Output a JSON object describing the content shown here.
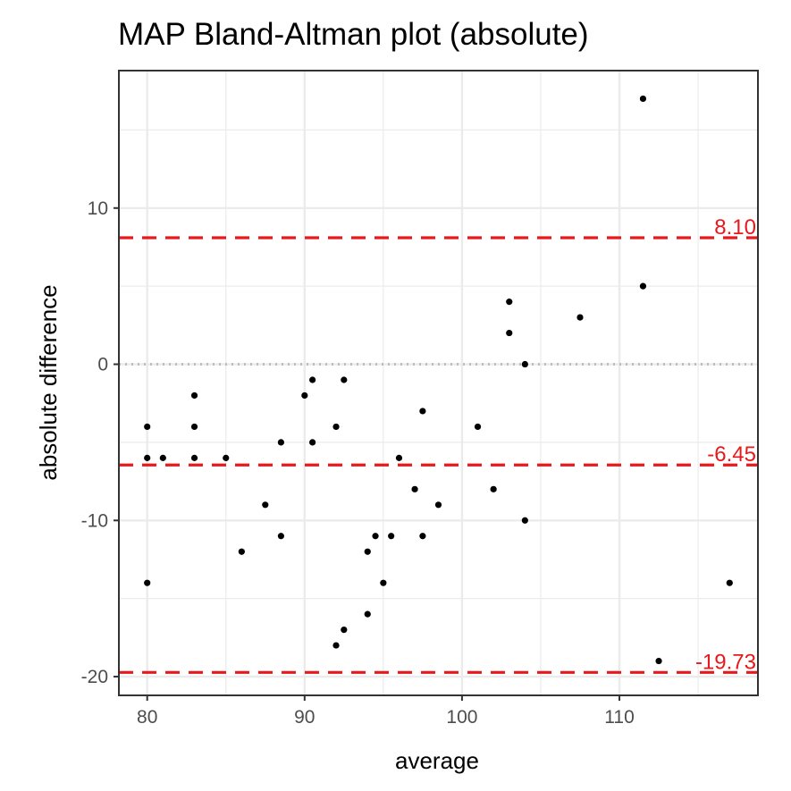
{
  "chart_data": {
    "type": "scatter",
    "title": "MAP   Bland-Altman plot (absolute)",
    "xlabel": "average",
    "ylabel": "absolute difference",
    "xlim": [
      78.2,
      118.8
    ],
    "ylim": [
      -21.2,
      18.8
    ],
    "x_ticks": [
      80,
      90,
      100,
      110
    ],
    "y_ticks": [
      -20,
      -10,
      0,
      10
    ],
    "x_tick_labels": [
      "80",
      "90",
      "100",
      "110"
    ],
    "y_tick_labels": [
      "-20",
      "-10",
      "0",
      "10"
    ],
    "grid": true,
    "reference_lines": [
      {
        "value": 8.1,
        "label": "8.10",
        "style": "dashed",
        "color": "#e8191c"
      },
      {
        "value": -6.45,
        "label": "-6.45",
        "style": "dashed",
        "color": "#e8191c"
      },
      {
        "value": -19.73,
        "label": "-19.73",
        "style": "dashed",
        "color": "#e8191c"
      },
      {
        "value": 0,
        "label": "",
        "style": "dotted",
        "color": "#bdbdbd"
      }
    ],
    "points": [
      {
        "x": 80,
        "y": -4
      },
      {
        "x": 80,
        "y": -6
      },
      {
        "x": 80,
        "y": -14
      },
      {
        "x": 81,
        "y": -6
      },
      {
        "x": 83,
        "y": -2
      },
      {
        "x": 83,
        "y": -4
      },
      {
        "x": 83,
        "y": -6
      },
      {
        "x": 85,
        "y": -6
      },
      {
        "x": 86,
        "y": -12
      },
      {
        "x": 87.5,
        "y": -9
      },
      {
        "x": 88.5,
        "y": -5
      },
      {
        "x": 88.5,
        "y": -11
      },
      {
        "x": 90,
        "y": -2
      },
      {
        "x": 90.5,
        "y": -1
      },
      {
        "x": 90.5,
        "y": -5
      },
      {
        "x": 92,
        "y": -4
      },
      {
        "x": 92,
        "y": -18
      },
      {
        "x": 92.5,
        "y": -1
      },
      {
        "x": 92.5,
        "y": -17
      },
      {
        "x": 94,
        "y": -12
      },
      {
        "x": 94,
        "y": -16
      },
      {
        "x": 94.5,
        "y": -11
      },
      {
        "x": 95,
        "y": -14
      },
      {
        "x": 95.5,
        "y": -11
      },
      {
        "x": 96,
        "y": -6
      },
      {
        "x": 97,
        "y": -8
      },
      {
        "x": 97.5,
        "y": -3
      },
      {
        "x": 97.5,
        "y": -11
      },
      {
        "x": 98.5,
        "y": -9
      },
      {
        "x": 101,
        "y": -4
      },
      {
        "x": 102,
        "y": -8
      },
      {
        "x": 103,
        "y": 4
      },
      {
        "x": 103,
        "y": 2
      },
      {
        "x": 104,
        "y": 0
      },
      {
        "x": 104,
        "y": -10
      },
      {
        "x": 107.5,
        "y": 3
      },
      {
        "x": 111.5,
        "y": 17
      },
      {
        "x": 111.5,
        "y": 5
      },
      {
        "x": 112.5,
        "y": -19
      },
      {
        "x": 117,
        "y": -14
      }
    ],
    "point_color": "#000000"
  }
}
